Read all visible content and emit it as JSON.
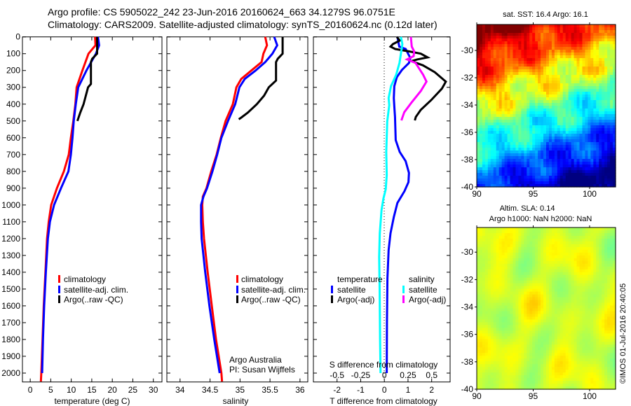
{
  "header": {
    "title_line1": "Argo profile: CS 5905022_242 23-Jun-2016 20160624_663 34.1279S 96.0751E",
    "title_line2": "Climatology: CARS2009. Satellite-adjusted climatology: synTS_20160624.nc (0.12d later)"
  },
  "copyright": "©IMOS 01-Jul-2016 20:40:05",
  "colors": {
    "climatology": "#ff0000",
    "satellite_adj": "#0000ff",
    "argo": "#000000",
    "sal_satellite": "#00ffff",
    "sal_argo": "#ff00ff"
  },
  "chart_data": [
    {
      "id": "temperature",
      "type": "line",
      "xlabel": "temperature (deg C)",
      "ylabel": "",
      "xlim": [
        -1.9,
        32.1
      ],
      "ylim": [
        2053,
        0
      ],
      "xticks": [
        0,
        5,
        10,
        15,
        20,
        25,
        30
      ],
      "yticks": [
        0,
        100,
        200,
        300,
        400,
        500,
        600,
        700,
        800,
        900,
        1000,
        1100,
        1200,
        1300,
        1400,
        1500,
        1600,
        1700,
        1800,
        1900,
        2000
      ],
      "legend": [
        "climatology",
        "satellite-adj. clim.",
        "Argo(..raw -QC)"
      ],
      "series": [
        {
          "name": "climatology",
          "color": "#ff0000",
          "depth": [
            0,
            50,
            100,
            200,
            300,
            400,
            500,
            600,
            700,
            800,
            900,
            1000,
            1100,
            1200,
            1400,
            1600,
            1800,
            2000,
            2050
          ],
          "values": [
            15.8,
            15.9,
            14.2,
            12.7,
            11.3,
            11.0,
            10.5,
            9.9,
            9.4,
            8.2,
            6.5,
            5.1,
            4.5,
            4.1,
            3.7,
            3.3,
            3.0,
            2.7,
            2.6
          ]
        },
        {
          "name": "satellite-adj. clim.",
          "color": "#0000ff",
          "depth": [
            0,
            50,
            100,
            200,
            300,
            400,
            500,
            600,
            700,
            800,
            900,
            1000,
            1100,
            1200,
            1400,
            1600,
            1800,
            2000
          ],
          "values": [
            16.5,
            16.8,
            16.0,
            13.7,
            11.7,
            11.1,
            10.6,
            10.3,
            9.9,
            9.3,
            7.5,
            5.8,
            4.8,
            4.3,
            3.8,
            3.4,
            3.1,
            2.9
          ]
        },
        {
          "name": "Argo(..raw -QC)",
          "color": "#000000",
          "depth": [
            0,
            100,
            130,
            150,
            280,
            300,
            400,
            450,
            500
          ],
          "values": [
            16.3,
            16.3,
            15.1,
            14.8,
            14.8,
            14.1,
            13.0,
            12.2,
            11.5
          ]
        }
      ]
    },
    {
      "id": "salinity",
      "type": "line",
      "xlabel": "salinity",
      "xlim": [
        33.78,
        36.13
      ],
      "ylim": [
        2053,
        0
      ],
      "xticks": [
        34,
        34.5,
        35,
        35.5,
        36
      ],
      "legend": [
        "climatology",
        "satellite-adj. clim.",
        "Argo(..raw -QC)"
      ],
      "annotation": [
        "Argo Australia",
        "PI: Susan Wijffels"
      ],
      "series": [
        {
          "name": "climatology",
          "color": "#ff0000",
          "depth": [
            0,
            50,
            100,
            150,
            200,
            250,
            300,
            400,
            500,
            600,
            700,
            800,
            900,
            950,
            1000,
            1100,
            1200,
            1400,
            1600,
            1800,
            2000,
            2050
          ],
          "values": [
            35.42,
            35.45,
            35.39,
            35.36,
            35.19,
            35.02,
            34.94,
            34.88,
            34.76,
            34.68,
            34.61,
            34.52,
            34.44,
            34.38,
            34.37,
            34.38,
            34.4,
            34.46,
            34.53,
            34.6,
            34.69,
            34.7
          ]
        },
        {
          "name": "satellite-adj. clim.",
          "color": "#0000ff",
          "depth": [
            0,
            50,
            100,
            150,
            200,
            250,
            300,
            400,
            500,
            600,
            700,
            800,
            900,
            950,
            1000,
            1100,
            1200,
            1400,
            1600,
            1800,
            2000
          ],
          "values": [
            35.57,
            35.62,
            35.54,
            35.42,
            35.26,
            35.08,
            34.99,
            34.92,
            34.8,
            34.69,
            34.62,
            34.54,
            34.45,
            34.39,
            34.35,
            34.35,
            34.36,
            34.42,
            34.49,
            34.57,
            34.66
          ]
        },
        {
          "name": "Argo(..raw -QC)",
          "color": "#000000",
          "depth": [
            0,
            100,
            130,
            150,
            260,
            300,
            350,
            400,
            450,
            480,
            490
          ],
          "values": [
            35.71,
            35.71,
            35.63,
            35.6,
            35.6,
            35.48,
            35.4,
            35.28,
            35.13,
            35.02,
            34.98
          ]
        }
      ]
    },
    {
      "id": "difference",
      "type": "line",
      "xlabel": "T difference from climatology",
      "xlabel2": "S difference from climatology",
      "xlim": [
        -3.0,
        2.78
      ],
      "ylim": [
        2053,
        0
      ],
      "xticks": [
        -2,
        -1,
        0,
        1,
        2
      ],
      "xticks_s": [
        -0.5,
        -0.25,
        0,
        0.25,
        0.5
      ],
      "s_to_t_scale": 4,
      "legend": {
        "temperature_title": "temperature",
        "salinity_title": "salinity",
        "t_satellite": "satellite",
        "t_argo": "Argo(-adj)",
        "s_satellite": "satellite",
        "s_argo": "Argo(-adj)"
      },
      "series": [
        {
          "name": "temperature satellite",
          "axis": "T",
          "color": "#0000ff",
          "depth": [
            0,
            58,
            72,
            126,
            155,
            197,
            239,
            293,
            364,
            433,
            475,
            614,
            684,
            739,
            809,
            864,
            918,
            988,
            1072,
            1168,
            1268,
            1435,
            1700,
            2000
          ],
          "values": [
            0.55,
            0.63,
            0.9,
            1.1,
            1.04,
            0.74,
            0.53,
            0.42,
            0.4,
            0.43,
            0.45,
            0.48,
            0.65,
            0.9,
            1.04,
            1.02,
            0.85,
            0.55,
            0.4,
            0.26,
            0.18,
            0.13,
            0.11,
            0.1
          ]
        },
        {
          "name": "temperature Argo(-adj)",
          "axis": "T",
          "color": "#000000",
          "depth": [
            0,
            22,
            43,
            58,
            72,
            86,
            100,
            122,
            134,
            144,
            169,
            210,
            266,
            308,
            376,
            434,
            476,
            497
          ],
          "values": [
            0.53,
            0.65,
            0.36,
            0.26,
            0.46,
            1.04,
            1.54,
            1.83,
            1.39,
            1.14,
            1.63,
            2.13,
            2.6,
            2.43,
            1.98,
            1.54,
            1.33,
            1.29
          ]
        },
        {
          "name": "salinity satellite",
          "axis": "S",
          "color": "#00ffff",
          "depth": [
            0,
            43,
            100,
            155,
            225,
            293,
            364,
            406,
            503,
            545,
            684,
            822,
            906,
            961,
            1030,
            1168,
            1310,
            1500,
            1800,
            2000
          ],
          "values": [
            0.175,
            0.19,
            0.175,
            0.16,
            0.125,
            0.07,
            0.045,
            0.052,
            0.03,
            0.028,
            0.02,
            0.025,
            0.015,
            -0.01,
            -0.03,
            -0.048,
            -0.055,
            -0.05,
            -0.045,
            -0.04
          ]
        },
        {
          "name": "salinity Argo(-adj)",
          "axis": "S",
          "color": "#ff00ff",
          "depth": [
            0,
            58,
            86,
            114,
            134,
            155,
            225,
            266,
            322,
            392,
            448,
            497
          ],
          "values": [
            0.28,
            0.29,
            0.315,
            0.31,
            0.24,
            0.33,
            0.41,
            0.445,
            0.385,
            0.285,
            0.21,
            0.18
          ]
        }
      ]
    },
    {
      "id": "sst_map",
      "type": "heatmap",
      "title": "sat. SST: 16.4 Argo: 16.1",
      "xlim": [
        90,
        102.3
      ],
      "ylim": [
        -40,
        -28.1
      ],
      "xticks": [
        90,
        95,
        100
      ],
      "yticks": [
        -30,
        -32,
        -34,
        -36,
        -38,
        -40
      ]
    },
    {
      "id": "sla_map",
      "type": "heatmap",
      "title": "Altim. SLA: 0.14",
      "subtitle": "Argo h1000: NaN h2000: NaN",
      "xlim": [
        90,
        102.3
      ],
      "ylim": [
        -40,
        -28.2
      ],
      "xticks": [
        90,
        95,
        100
      ],
      "yticks": [
        -30,
        -32,
        -34,
        -36,
        -38,
        -40
      ]
    }
  ]
}
